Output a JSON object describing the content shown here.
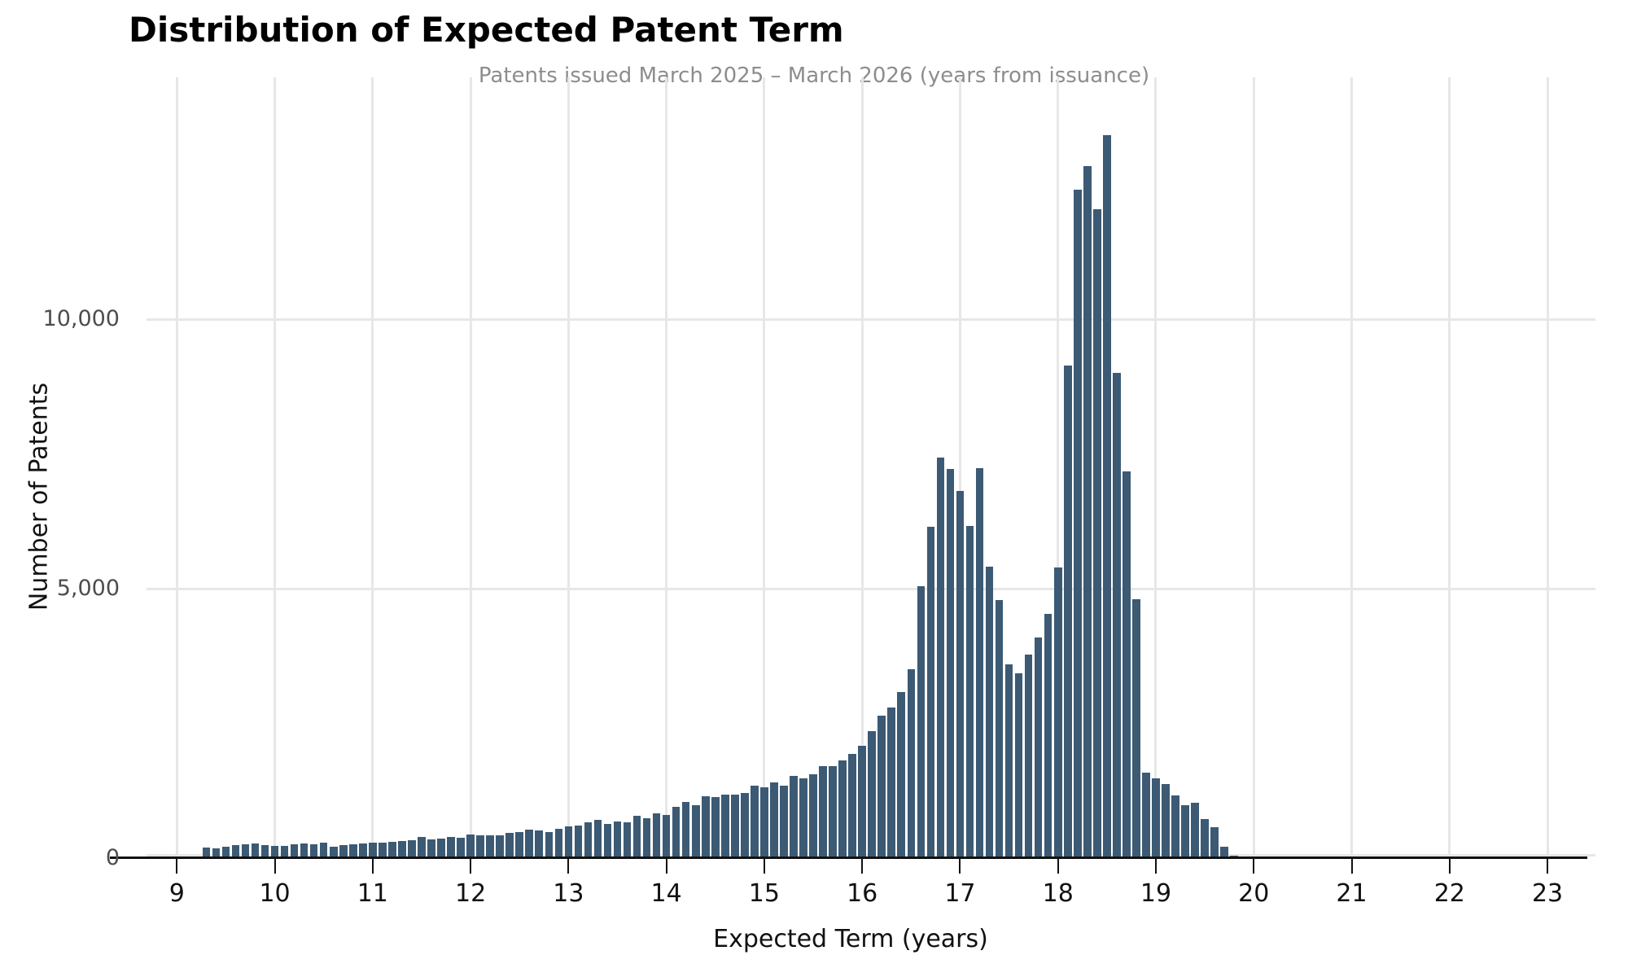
{
  "colors": {
    "bar": "#3c5a74",
    "grid": "#e7e7e7",
    "axis": "#111111",
    "x_tick_label": "#111111",
    "y_tick_label": "#4d4d4d",
    "title": "#000000",
    "subtitle": "#8d8d8d",
    "background": "#ffffff"
  },
  "chart_data": {
    "type": "bar",
    "subtype": "histogram",
    "title": "Distribution of Expected Patent Term",
    "subtitle": "Patents issued March 2025 – March 2026 (years from issuance)",
    "xlabel": "Expected Term (years)",
    "ylabel": "Number of Patents",
    "legend": "none",
    "grid": true,
    "xlim": [
      8.69,
      23.49
    ],
    "ylim": [
      0,
      14490
    ],
    "x_tick_values": [
      9,
      10,
      11,
      12,
      13,
      14,
      15,
      16,
      17,
      18,
      19,
      20,
      21,
      22,
      23
    ],
    "x_tick_labels": [
      "9",
      "10",
      "11",
      "12",
      "13",
      "14",
      "15",
      "16",
      "17",
      "18",
      "19",
      "20",
      "21",
      "22",
      "23"
    ],
    "y_tick_values": [
      0,
      5000,
      10000
    ],
    "y_tick_labels": [
      "0",
      "5,000",
      "10,000"
    ],
    "histogram": {
      "bin_center_start": 9.3,
      "bin_step": 0.1,
      "counts": [
        200,
        185,
        215,
        240,
        250,
        275,
        240,
        230,
        225,
        250,
        265,
        250,
        280,
        215,
        240,
        260,
        270,
        285,
        290,
        300,
        310,
        330,
        400,
        350,
        360,
        390,
        380,
        440,
        420,
        420,
        430,
        470,
        490,
        530,
        520,
        480,
        540,
        590,
        610,
        670,
        710,
        640,
        680,
        660,
        780,
        745,
        830,
        795,
        945,
        1050,
        980,
        1150,
        1130,
        1180,
        1180,
        1210,
        1340,
        1310,
        1400,
        1340,
        1520,
        1480,
        1550,
        1710,
        1700,
        1820,
        1940,
        2080,
        2350,
        2650,
        2790,
        3080,
        3500,
        5050,
        6150,
        7440,
        7220,
        6820,
        6160,
        7240,
        5410,
        4790,
        3600,
        3430,
        3770,
        4100,
        4530,
        5400,
        9140,
        12400,
        12850,
        12040,
        13410,
        9010,
        7170,
        4800,
        1590,
        1480,
        1370,
        1170,
        980,
        1030,
        730,
        570,
        210,
        50
      ]
    }
  }
}
